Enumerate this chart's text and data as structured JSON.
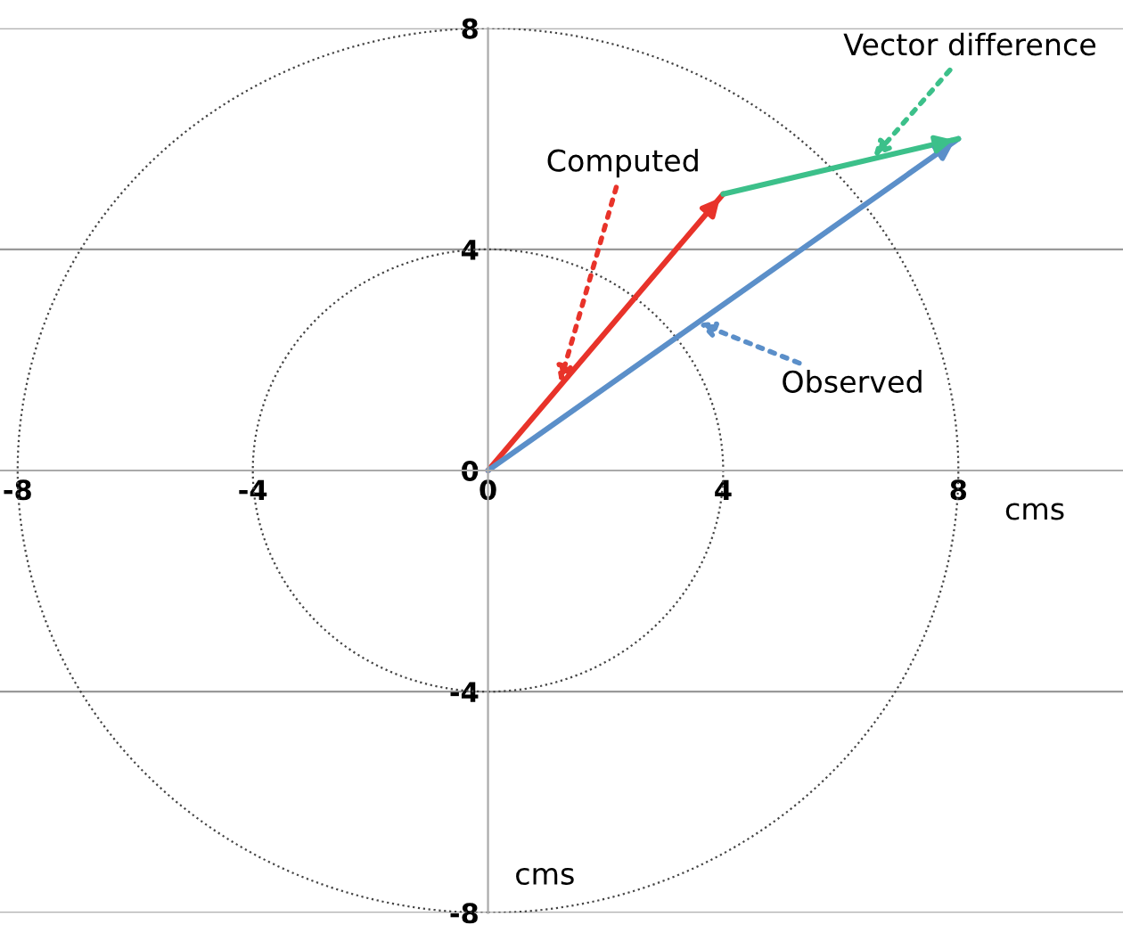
{
  "chart_data": {
    "type": "line",
    "xlabel": "cms",
    "ylabel": "cms",
    "series": [
      {
        "name": "Computed",
        "color": "#e8332a",
        "x": [
          0,
          4
        ],
        "values": [
          0,
          5
        ]
      },
      {
        "name": "Observed",
        "color": "#5b8fc9",
        "x": [
          0,
          8
        ],
        "values": [
          0,
          6
        ]
      },
      {
        "name": "Vector difference",
        "color": "#3cc08a",
        "x": [
          4,
          8
        ],
        "values": [
          5,
          6
        ]
      }
    ],
    "xlim": [
      -8.3,
      10.8
    ],
    "ylim": [
      -8,
      8
    ],
    "xticks": [
      -8,
      -4,
      0,
      4,
      8
    ],
    "yticks": [
      -8,
      -4,
      0,
      4,
      8
    ],
    "grid": "y",
    "legend": false,
    "marker": "none",
    "line_style": "solid"
  }
}
